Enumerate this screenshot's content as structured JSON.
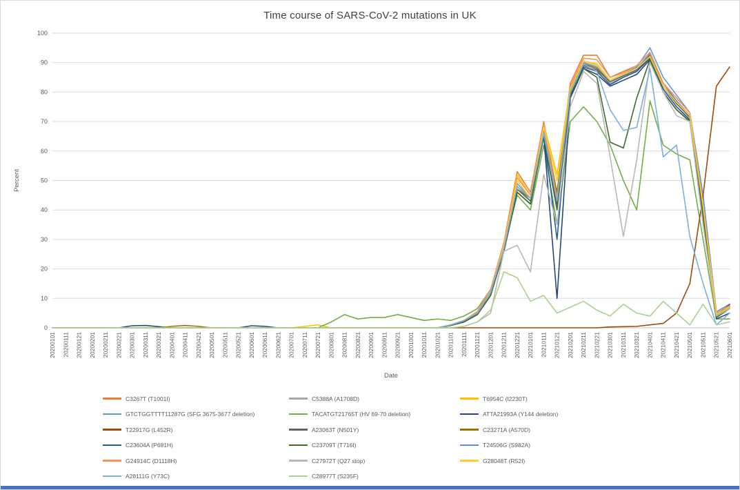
{
  "colors": {
    "accent_bar": "#4472C4",
    "gridline": "#d9d9d9",
    "axis_line": "#bfbfbf",
    "tick_text": "#595959",
    "title_text": "#404040"
  },
  "chart_data": {
    "type": "line",
    "title": "Time course of SARS-CoV-2 mutations in UK",
    "xlabel": "Date",
    "ylabel": "Percent",
    "ylim": [
      0,
      100
    ],
    "ytick_step": 10,
    "grid": true,
    "legend_position": "bottom",
    "categories": [
      "20200101",
      "20200111",
      "20200121",
      "20200201",
      "20200211",
      "20200221",
      "20200301",
      "20200311",
      "20200321",
      "20200401",
      "20200411",
      "20200421",
      "20200501",
      "20200511",
      "20200521",
      "20200601",
      "20200611",
      "20200621",
      "20200701",
      "20200711",
      "20200721",
      "20200801",
      "20200811",
      "20200821",
      "20200901",
      "20200911",
      "20200921",
      "20201001",
      "20201011",
      "20201021",
      "20201101",
      "20201111",
      "20201121",
      "20201201",
      "20201211",
      "20201221",
      "20210101",
      "20210111",
      "20210121",
      "20210201",
      "20210211",
      "20210221",
      "20210301",
      "20210311",
      "20210321",
      "20210401",
      "20210411",
      "20210421",
      "20210501",
      "20210511",
      "20210521",
      "20210601"
    ],
    "series": [
      {
        "name": "C3267T (T1001I)",
        "color": "#ED7D31",
        "values": [
          0,
          0,
          0,
          0,
          0,
          0,
          0,
          0,
          0,
          0,
          0,
          0,
          0,
          0,
          0,
          0,
          0,
          0,
          0,
          0,
          0,
          0,
          0,
          0,
          0,
          0,
          0,
          0,
          0,
          0,
          1,
          2.5,
          5.5,
          13,
          29,
          53,
          46,
          70,
          45,
          83,
          92.5,
          92.5,
          85,
          87,
          89,
          93.5,
          83,
          78,
          73,
          42,
          5,
          7.5
        ]
      },
      {
        "name": "C5388A (A1708D)",
        "color": "#A5A5A5",
        "values": [
          0,
          0,
          0,
          0,
          0,
          0,
          0,
          0,
          0,
          0,
          0,
          0,
          0,
          0,
          0,
          0,
          0,
          0,
          0,
          0,
          0,
          0,
          0,
          0,
          0,
          0,
          0,
          0,
          0,
          0,
          0.8,
          2,
          4.5,
          11,
          26,
          48,
          43,
          67,
          41,
          80,
          90,
          88,
          83,
          85,
          87,
          92,
          81,
          75,
          71,
          39,
          4,
          7
        ]
      },
      {
        "name": "T6954C (I2230T)",
        "color": "#FFC000",
        "values": [
          0,
          0,
          0,
          0,
          0,
          0,
          0,
          0,
          0,
          0,
          0,
          0,
          0,
          0,
          0,
          0,
          0,
          0,
          0,
          0.5,
          1,
          0,
          0,
          0,
          0,
          0,
          0,
          0,
          0,
          0,
          1,
          2.5,
          5,
          12,
          28,
          52,
          45,
          69,
          52,
          82,
          90.5,
          89.5,
          84,
          86,
          88,
          93,
          82,
          77,
          72,
          41,
          4.5,
          7
        ]
      },
      {
        "name": "GTCTGGTTTT11287G (SFG 3675-3677 deletion)",
        "color": "#5B9BD5",
        "values": [
          0,
          0,
          0,
          0,
          0,
          0,
          0,
          0,
          0,
          0,
          0,
          0,
          0,
          0,
          0,
          0,
          0,
          0,
          0,
          0,
          0,
          0,
          0,
          0,
          0,
          0,
          0,
          0,
          0,
          0,
          1,
          2.5,
          5,
          12,
          27,
          49,
          44,
          66,
          44,
          81,
          90.5,
          89,
          84,
          86,
          88.5,
          95,
          85,
          79,
          73,
          45,
          5.5,
          8
        ]
      },
      {
        "name": "TACATGT21765T (HV 69-70 deletion)",
        "color": "#70AD47",
        "values": [
          0,
          0,
          0,
          0,
          0,
          0,
          0,
          0,
          0,
          0,
          0,
          0,
          0,
          0,
          0,
          0,
          0,
          0,
          0,
          0,
          0,
          2,
          4.5,
          3,
          3.5,
          3.5,
          4.5,
          3.5,
          2.5,
          3,
          2.5,
          4,
          6.5,
          13,
          27,
          45,
          40,
          62,
          35,
          70,
          75,
          70,
          62,
          50,
          40,
          77,
          62,
          59,
          57,
          30,
          3,
          3
        ]
      },
      {
        "name": "ATTA21993A (Y144 deletion)",
        "color": "#264478",
        "values": [
          0,
          0,
          0,
          0,
          0,
          0,
          0.7,
          0.8,
          0.4,
          0,
          0,
          0,
          0,
          0,
          0,
          0.7,
          0.5,
          0,
          0,
          0,
          0,
          0,
          0,
          0,
          0,
          0,
          0,
          0,
          0,
          0,
          0.8,
          2,
          4.5,
          11,
          26,
          46,
          42,
          65,
          10,
          78,
          88,
          86,
          82,
          84,
          86,
          91,
          80,
          74,
          70,
          38,
          3,
          5
        ]
      },
      {
        "name": "T22917G (L452R)",
        "color": "#9E480E",
        "values": [
          0,
          0,
          0,
          0,
          0,
          0,
          0,
          0,
          0,
          0,
          0,
          0,
          0,
          0,
          0,
          0,
          0,
          0,
          0,
          0,
          0,
          0,
          0,
          0,
          0,
          0,
          0,
          0,
          0,
          0,
          0,
          0,
          0,
          0,
          0,
          0,
          0,
          0,
          0,
          0,
          0,
          0,
          0.3,
          0.4,
          0.5,
          1,
          1.5,
          5,
          15,
          45,
          82,
          88.5
        ]
      },
      {
        "name": "A23063T (N501Y)",
        "color": "#636363",
        "values": [
          0,
          0,
          0,
          0,
          0,
          0,
          0,
          0,
          0,
          0,
          0,
          0,
          0,
          0,
          0,
          0,
          0,
          0,
          0,
          0,
          0,
          0,
          0,
          0,
          0,
          0,
          0,
          0,
          0,
          0,
          1,
          2.5,
          5,
          12,
          28,
          47,
          43,
          67,
          42,
          81,
          89,
          87.5,
          83.5,
          85.5,
          87.5,
          92,
          82,
          76,
          71.5,
          40,
          4,
          7
        ]
      },
      {
        "name": "C23271A (A570D)",
        "color": "#997300",
        "values": [
          0,
          0,
          0,
          0,
          0,
          0,
          0,
          0,
          0,
          0.5,
          0.8,
          0.5,
          0,
          0,
          0,
          0,
          0,
          0,
          0,
          0,
          0,
          0,
          0,
          0,
          0,
          0,
          0,
          0,
          0,
          0,
          1,
          2.5,
          5,
          12,
          28,
          47,
          44,
          68,
          46,
          82,
          89.5,
          88,
          84,
          86,
          88,
          92.5,
          82,
          77,
          72,
          41,
          4,
          7
        ]
      },
      {
        "name": "C23604A (P681H)",
        "color": "#255E91",
        "values": [
          0,
          0,
          0,
          0,
          0,
          0,
          0,
          0,
          0,
          0,
          0,
          0,
          0,
          0,
          0,
          0,
          0,
          0,
          0,
          0,
          0,
          0,
          0,
          0,
          0,
          0,
          0,
          0,
          0,
          0,
          0.8,
          2,
          4.5,
          11,
          27,
          46,
          42,
          66,
          30,
          79,
          88.5,
          87,
          82.5,
          85,
          87,
          91.5,
          81,
          75,
          70.5,
          39,
          4,
          8
        ]
      },
      {
        "name": "C23709T (T716I)",
        "color": "#43682B",
        "values": [
          0,
          0,
          0,
          0,
          0,
          0,
          0,
          0,
          0,
          0,
          0,
          0,
          0,
          0,
          0,
          0,
          0,
          0,
          0,
          0,
          0,
          0,
          0,
          0,
          0,
          0,
          0,
          0,
          0,
          0,
          0.8,
          2,
          4.5,
          11,
          26,
          46,
          42,
          65,
          40,
          79,
          88,
          85,
          63,
          61,
          78,
          91,
          80,
          74,
          70,
          38,
          3.5,
          6.5
        ]
      },
      {
        "name": "T24506G (S982A)",
        "color": "#698ED0",
        "values": [
          0,
          0,
          0,
          0,
          0,
          0,
          0,
          0,
          0,
          0,
          0,
          0,
          0,
          0,
          0,
          0,
          0,
          0,
          0,
          0,
          0,
          0,
          0,
          0,
          0,
          0,
          0,
          0,
          0,
          0,
          1,
          2.5,
          5,
          12,
          27,
          48,
          44,
          67,
          43,
          81,
          90,
          88.5,
          84,
          86,
          88,
          93,
          83,
          77,
          72,
          42,
          5,
          7.5
        ]
      },
      {
        "name": "G24914C (D1118H)",
        "color": "#F1975A",
        "values": [
          0,
          0,
          0,
          0,
          0,
          0,
          0,
          0,
          0,
          0,
          0,
          0,
          0,
          0,
          0,
          0,
          0,
          0,
          0,
          0,
          0,
          0,
          0,
          0,
          0,
          0,
          0,
          0,
          0,
          0,
          1,
          2.5,
          5.5,
          13,
          29,
          51,
          45,
          69,
          44,
          82,
          91.5,
          91,
          85,
          86.5,
          89,
          93.5,
          83,
          78,
          73,
          42,
          5,
          7.5
        ]
      },
      {
        "name": "C27972T (Q27 stop)",
        "color": "#B7B7B7",
        "values": [
          0,
          0,
          0,
          0,
          0,
          0,
          0,
          0,
          0,
          0,
          0,
          0,
          0,
          0,
          0,
          0,
          0,
          0,
          0,
          0,
          0,
          0,
          0,
          0,
          0,
          0,
          0,
          0,
          0,
          0,
          0,
          0.5,
          2,
          5,
          26,
          28,
          19,
          52,
          35,
          75,
          87,
          83,
          58,
          31,
          57,
          90,
          80,
          72,
          70,
          35,
          4,
          6.5
        ]
      },
      {
        "name": "G28048T (R52I)",
        "color": "#FFCD33",
        "values": [
          0,
          0,
          0,
          0,
          0,
          0,
          0,
          0,
          0,
          0,
          0,
          0,
          0,
          0,
          0,
          0,
          0,
          0,
          0,
          0,
          0,
          0,
          0,
          0,
          0,
          0,
          0,
          0,
          0,
          0,
          1,
          2.5,
          5,
          12,
          28,
          50,
          44,
          68,
          50,
          81,
          90.5,
          89,
          84,
          86,
          88,
          92,
          82,
          76.5,
          72,
          41,
          4.5,
          7
        ]
      },
      {
        "name": "A28111G (Y73C)",
        "color": "#7CAFDD",
        "values": [
          0,
          0,
          0,
          0,
          0,
          0,
          0,
          0,
          0,
          0,
          0,
          0,
          0,
          0,
          0,
          0,
          0,
          0,
          0,
          0,
          0,
          0,
          0,
          0,
          0,
          0,
          0,
          0,
          0,
          0,
          1,
          2.5,
          5,
          12,
          27,
          48,
          44,
          66,
          43,
          80,
          89.5,
          87,
          74,
          67,
          68,
          88,
          58,
          62,
          31,
          15,
          1,
          5
        ]
      },
      {
        "name": "C28977T (S235F)",
        "color": "#A9D18E",
        "values": [
          0,
          0,
          0,
          0,
          0,
          0,
          0,
          0,
          0,
          0,
          0,
          0,
          0,
          0,
          0,
          0,
          0,
          0,
          0,
          0,
          0,
          0,
          0,
          0,
          0,
          0,
          0,
          0,
          0,
          0,
          0,
          0.5,
          2,
          6,
          19,
          17,
          9,
          11,
          5,
          7,
          9,
          6,
          4,
          8,
          5,
          4,
          9,
          5,
          1,
          8,
          1,
          2
        ]
      }
    ]
  }
}
